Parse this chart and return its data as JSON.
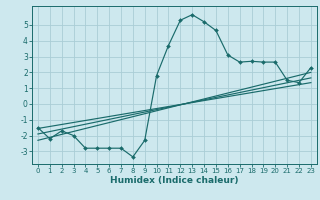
{
  "xlabel": "Humidex (Indice chaleur)",
  "ylabel": "",
  "xlim": [
    -0.5,
    23.5
  ],
  "ylim": [
    -3.8,
    6.2
  ],
  "yticks": [
    -3,
    -2,
    -1,
    0,
    1,
    2,
    3,
    4,
    5
  ],
  "xticks": [
    0,
    1,
    2,
    3,
    4,
    5,
    6,
    7,
    8,
    9,
    10,
    11,
    12,
    13,
    14,
    15,
    16,
    17,
    18,
    19,
    20,
    21,
    22,
    23
  ],
  "bg_color": "#cde8ee",
  "grid_color": "#aacdd6",
  "line_color": "#1a6b6b",
  "data_x": [
    0,
    1,
    2,
    3,
    4,
    5,
    6,
    7,
    8,
    9,
    10,
    11,
    12,
    13,
    14,
    15,
    16,
    17,
    18,
    19,
    20,
    21,
    22,
    23
  ],
  "data_y": [
    -1.5,
    -2.2,
    -1.7,
    -2.0,
    -2.8,
    -2.8,
    -2.8,
    -2.8,
    -3.35,
    -2.3,
    1.8,
    3.7,
    5.3,
    5.65,
    5.2,
    4.65,
    3.1,
    2.65,
    2.7,
    2.65,
    2.65,
    1.5,
    1.35,
    2.3
  ],
  "reg_lines": [
    {
      "x0": 0,
      "y0": -2.3,
      "x1": 23,
      "y1": 2.0
    },
    {
      "x0": 0,
      "y0": -1.9,
      "x1": 23,
      "y1": 1.65
    },
    {
      "x0": 0,
      "y0": -1.55,
      "x1": 23,
      "y1": 1.35
    }
  ]
}
